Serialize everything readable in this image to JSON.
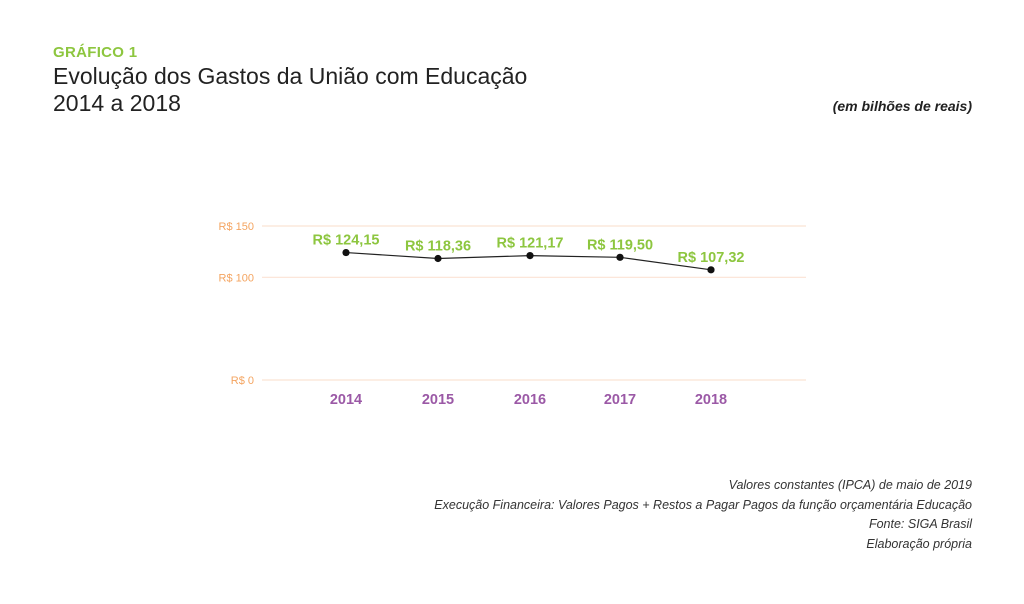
{
  "header": {
    "label": "GRÁFICO 1",
    "title_line1": "Evolução dos Gastos da União com Educação",
    "title_line2": "2014 a 2018",
    "units": "(em bilhões de reais)"
  },
  "chart_data": {
    "type": "line",
    "categories": [
      "2014",
      "2015",
      "2016",
      "2017",
      "2018"
    ],
    "series": [
      {
        "values": [
          124.15,
          118.36,
          121.17,
          119.5,
          107.32
        ],
        "labels": [
          "R$ 124,15",
          "R$ 118,36",
          "R$ 121,17",
          "R$ 119,50",
          "R$ 107,32"
        ]
      }
    ],
    "yticks": [
      0,
      100,
      150
    ],
    "ytick_labels": [
      "R$ 0",
      "R$ 100",
      "R$ 150"
    ],
    "ylim": [
      0,
      150
    ],
    "grid": true,
    "colors": {
      "line": "#222222",
      "point": "#111111",
      "data_label": "#8dc63f",
      "category_label": "#9b59a6",
      "tick_label": "#f4a460",
      "grid": "#fbe3d4"
    }
  },
  "notes": [
    "Valores constantes (IPCA) de maio de 2019",
    "Execução Financeira: Valores Pagos + Restos a Pagar Pagos da função orçamentária Educação",
    "Fonte: SIGA Brasil",
    "Elaboração própria"
  ]
}
